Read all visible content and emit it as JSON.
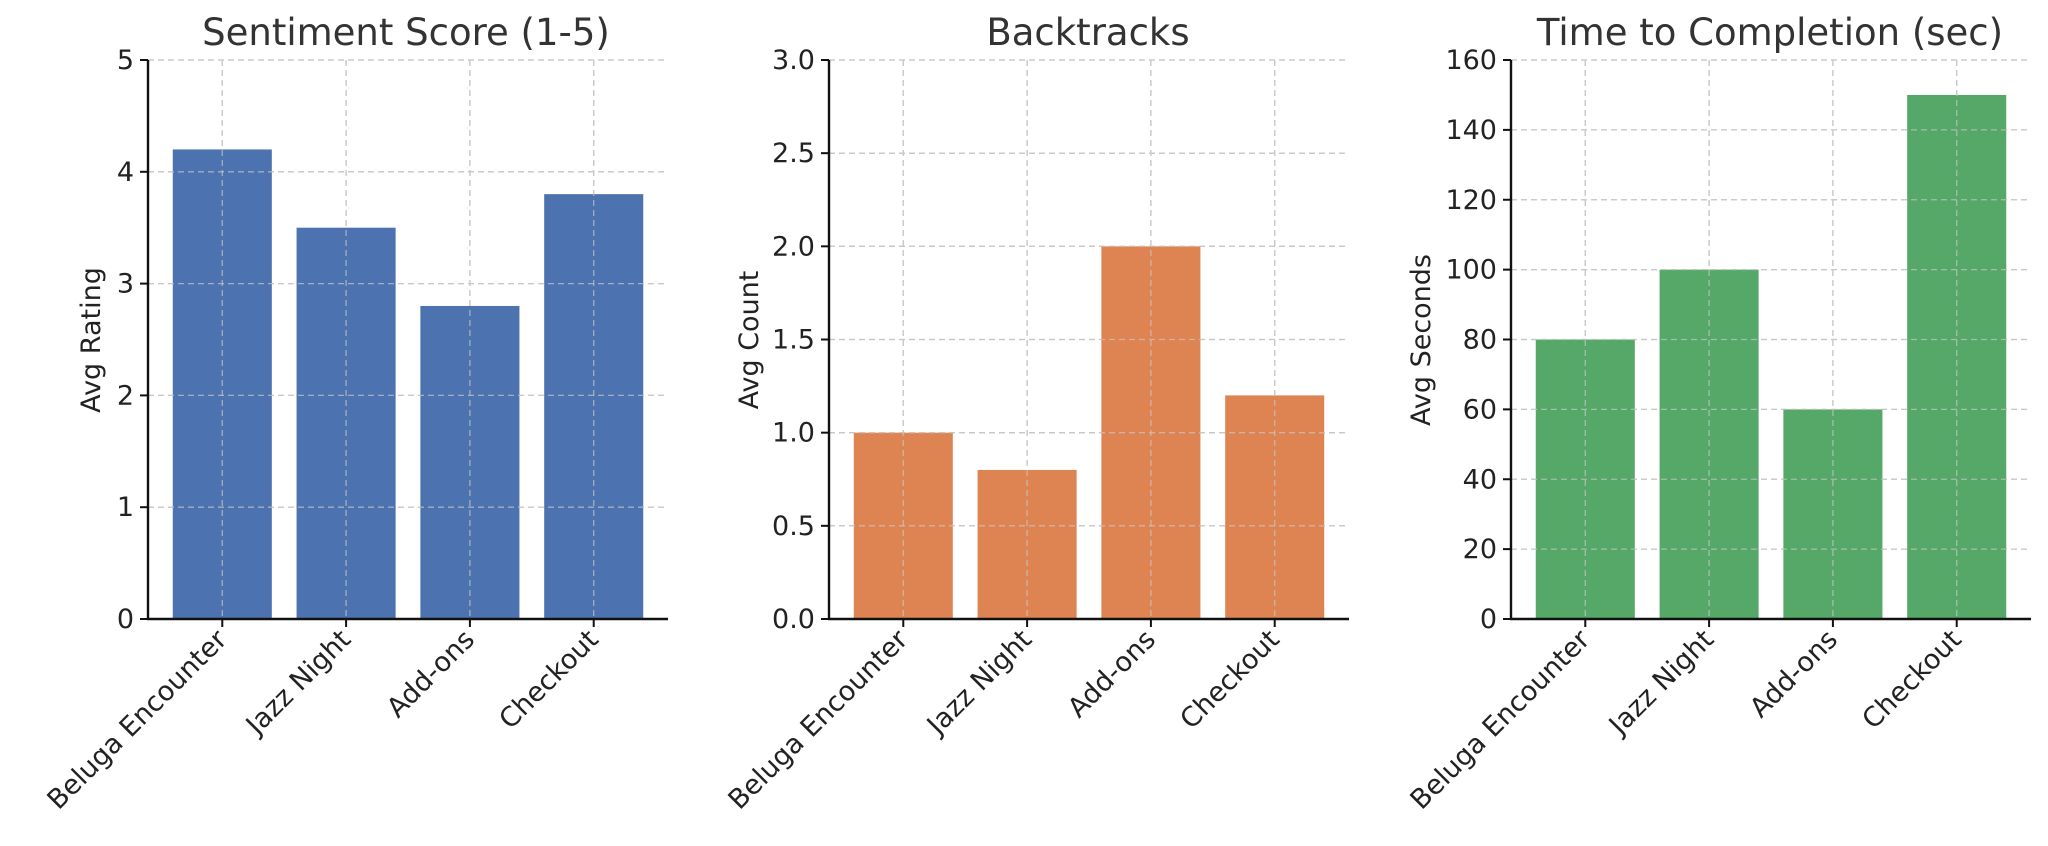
{
  "chart_data": [
    {
      "type": "bar",
      "title": "Sentiment Score (1-5)",
      "xlabel": "",
      "ylabel": "Avg Rating",
      "categories": [
        "Beluga Encounter",
        "Jazz Night",
        "Add-ons",
        "Checkout"
      ],
      "values": [
        4.2,
        3.5,
        2.8,
        3.8
      ],
      "ylim": [
        0,
        5
      ],
      "yticks": [
        "0",
        "1",
        "2",
        "3",
        "4",
        "5"
      ],
      "color": "#4c72b0",
      "grid": true
    },
    {
      "type": "bar",
      "title": "Backtracks",
      "xlabel": "",
      "ylabel": "Avg Count",
      "categories": [
        "Beluga Encounter",
        "Jazz Night",
        "Add-ons",
        "Checkout"
      ],
      "values": [
        1.0,
        0.8,
        2.0,
        1.2
      ],
      "ylim": [
        0,
        3
      ],
      "yticks": [
        "0.0",
        "0.5",
        "1.0",
        "1.5",
        "2.0",
        "2.5",
        "3.0"
      ],
      "color": "#dd8452",
      "grid": true
    },
    {
      "type": "bar",
      "title": "Time to Completion (sec)",
      "xlabel": "",
      "ylabel": "Avg Seconds",
      "categories": [
        "Beluga Encounter",
        "Jazz Night",
        "Add-ons",
        "Checkout"
      ],
      "values": [
        80,
        100,
        60,
        150
      ],
      "ylim": [
        0,
        160
      ],
      "yticks": [
        "0",
        "20",
        "40",
        "60",
        "80",
        "100",
        "120",
        "140",
        "160"
      ],
      "color": "#55a868",
      "grid": true
    }
  ]
}
